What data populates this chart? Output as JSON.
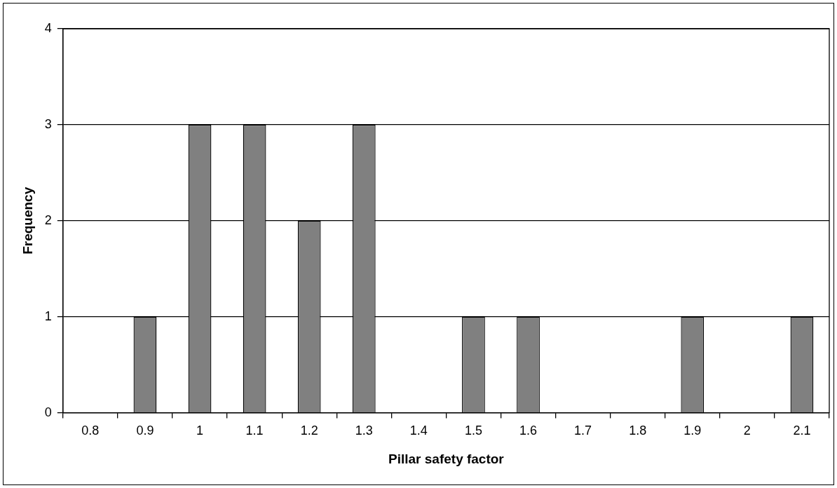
{
  "chart_data": {
    "type": "bar",
    "xlabel": "Pillar safety factor",
    "ylabel": "Frequency",
    "categories": [
      "0.8",
      "0.9",
      "1",
      "1.1",
      "1.2",
      "1.3",
      "1.4",
      "1.5",
      "1.6",
      "1.7",
      "1.8",
      "1.9",
      "2",
      "2.1"
    ],
    "values": [
      0,
      1,
      3,
      3,
      2,
      3,
      0,
      1,
      1,
      0,
      0,
      1,
      0,
      1
    ],
    "color": "#808080",
    "ylim": [
      0,
      4
    ],
    "yticks": [
      0,
      1,
      2,
      3,
      4
    ],
    "grid": "y",
    "legend": false
  }
}
